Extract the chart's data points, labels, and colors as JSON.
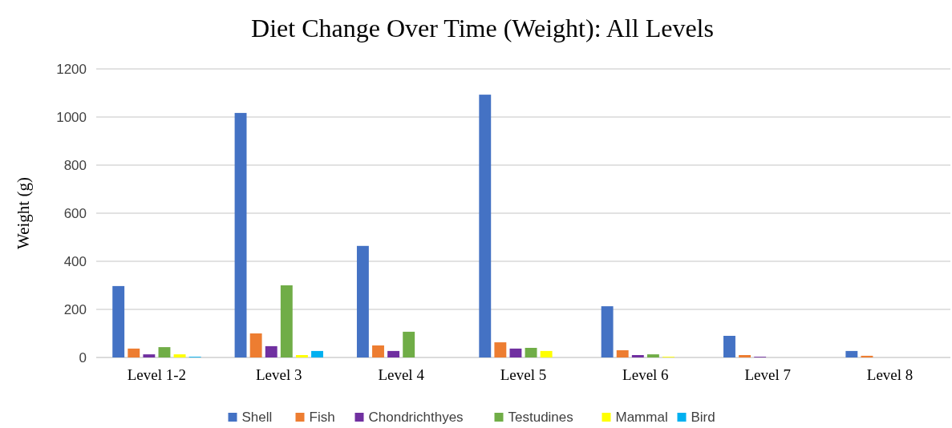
{
  "chart_data": {
    "type": "bar",
    "title": "Diet Change Over Time (Weight): All Levels",
    "ylabel": "Weight (g)",
    "categories": [
      "Level 1-2",
      "Level 3",
      "Level 4",
      "Level 5",
      "Level 6",
      "Level 7",
      "Level 8"
    ],
    "series": [
      {
        "name": "Shell",
        "color": "#4472c4",
        "values": [
          297,
          1017,
          464,
          1093,
          213,
          90,
          27
        ]
      },
      {
        "name": "Fish",
        "color": "#ed7d31",
        "values": [
          37,
          100,
          50,
          63,
          30,
          10,
          7
        ]
      },
      {
        "name": "Chondrichthyes",
        "color": "#7030a0",
        "values": [
          13,
          47,
          27,
          37,
          10,
          3,
          0
        ]
      },
      {
        "name": "Testudines",
        "color": "#70ad47",
        "values": [
          43,
          300,
          107,
          40,
          13,
          0,
          0
        ]
      },
      {
        "name": "Mammal",
        "color": "#ffff00",
        "values": [
          13,
          10,
          0,
          27,
          3,
          0,
          0
        ]
      },
      {
        "name": "Bird",
        "color": "#00b0f0",
        "values": [
          3,
          27,
          0,
          0,
          0,
          0,
          0
        ]
      }
    ],
    "ylim": [
      0,
      1200
    ],
    "yticks": [
      0,
      200,
      400,
      600,
      800,
      1000,
      1200
    ],
    "grid": "y",
    "legend": "bottom"
  }
}
